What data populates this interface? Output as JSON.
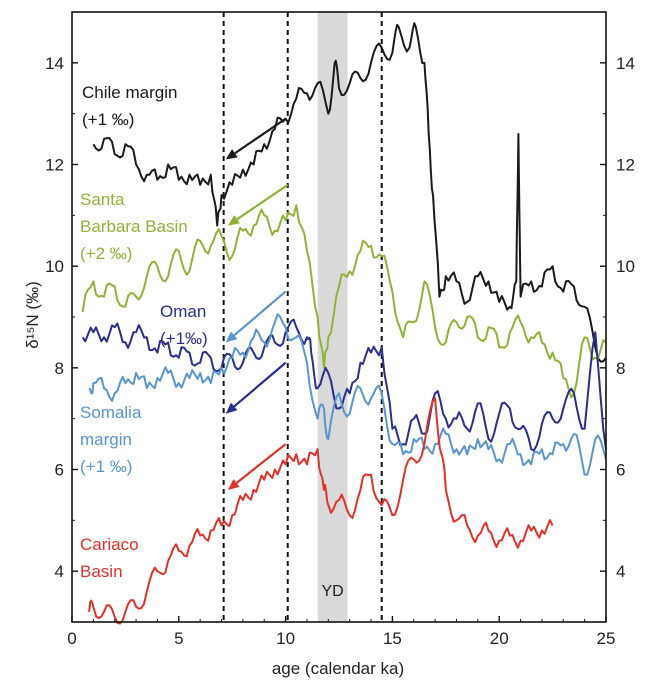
{
  "chart_data": {
    "type": "line",
    "xlabel": "age (calendar ka)",
    "ylabel": "δ¹⁵N (‰)",
    "xlim": [
      0,
      25
    ],
    "ylim": [
      3,
      15
    ],
    "x_ticks": [
      0,
      5,
      10,
      15,
      20,
      25
    ],
    "y_ticks": [
      4,
      6,
      8,
      10,
      12,
      14
    ],
    "grid": false,
    "shaded_band": {
      "label": "YD",
      "x_start": 11.5,
      "x_end": 12.9,
      "color": "#d9d9d9"
    },
    "dashed_lines_x": [
      7.1,
      10.1,
      14.5
    ],
    "series": [
      {
        "name": "Chile margin (+1 ‰)",
        "color": "#1a1a1a",
        "x": [
          1.0,
          1.5,
          2.0,
          2.5,
          3.0,
          3.5,
          4.0,
          4.5,
          5.0,
          5.5,
          6.0,
          6.5,
          6.8,
          7.0,
          7.5,
          8.0,
          8.5,
          9.0,
          9.5,
          10.0,
          10.5,
          11.0,
          11.5,
          12.0,
          12.3,
          12.5,
          13.0,
          13.5,
          14.0,
          14.5,
          15.0,
          15.3,
          15.8,
          16.1,
          16.5,
          16.7,
          16.9,
          17.2,
          17.5,
          18.0,
          18.5,
          19.0,
          19.5,
          20.0,
          20.5,
          20.8,
          20.9,
          21.0,
          21.5,
          22.0,
          22.5,
          23.0,
          23.5,
          24.0,
          24.5,
          25.0
        ],
        "y": [
          12.4,
          12.5,
          12.2,
          12.4,
          12.0,
          11.8,
          11.7,
          12.0,
          11.7,
          11.8,
          11.6,
          11.8,
          10.8,
          11.4,
          11.6,
          11.9,
          12.0,
          12.4,
          12.7,
          12.9,
          13.3,
          13.4,
          13.6,
          13.0,
          14.0,
          13.5,
          13.6,
          13.7,
          14.0,
          14.3,
          14.2,
          14.7,
          14.3,
          14.7,
          14.0,
          12.6,
          11.4,
          9.4,
          9.8,
          9.7,
          9.3,
          9.8,
          9.7,
          9.3,
          9.2,
          9.7,
          12.6,
          9.4,
          9.7,
          9.6,
          10.0,
          9.5,
          9.6,
          9.2,
          8.4,
          8.2
        ]
      },
      {
        "name": "Santa Barbara Basin (+2 ‰)",
        "color": "#8fb339",
        "x": [
          0.5,
          1.0,
          1.5,
          2.0,
          2.5,
          3.0,
          3.5,
          4.0,
          4.5,
          5.0,
          5.5,
          6.0,
          6.5,
          7.0,
          7.5,
          8.0,
          8.5,
          9.0,
          9.5,
          10.0,
          10.5,
          11.0,
          11.5,
          11.8,
          12.0,
          12.5,
          13.0,
          13.5,
          14.0,
          14.5,
          15.0,
          15.5,
          16.0,
          16.5,
          17.0,
          17.5,
          18.0,
          18.5,
          19.0,
          19.5,
          20.0,
          20.5,
          21.0,
          21.5,
          22.0,
          22.5,
          23.0,
          23.5,
          24.0,
          24.5,
          25.0
        ],
        "y": [
          9.1,
          9.7,
          9.4,
          9.6,
          9.2,
          9.4,
          9.8,
          10.0,
          9.8,
          10.3,
          9.9,
          10.5,
          10.4,
          10.6,
          10.2,
          10.7,
          10.8,
          11.0,
          10.7,
          10.9,
          11.2,
          10.3,
          9.0,
          8.0,
          8.6,
          9.6,
          9.9,
          10.3,
          10.4,
          10.2,
          9.5,
          8.6,
          8.9,
          9.7,
          8.8,
          8.5,
          8.9,
          9.0,
          8.6,
          8.8,
          8.4,
          8.7,
          8.9,
          8.6,
          8.5,
          8.3,
          7.8,
          7.5,
          8.6,
          8.2,
          8.5
        ]
      },
      {
        "name": "Oman (+1‰)",
        "color": "#2a2e8c",
        "x": [
          0.5,
          1.0,
          1.5,
          2.0,
          2.5,
          3.0,
          3.5,
          4.0,
          4.5,
          5.0,
          5.5,
          6.0,
          6.5,
          7.0,
          7.5,
          8.0,
          8.5,
          9.0,
          9.5,
          10.0,
          10.5,
          11.0,
          11.2,
          11.5,
          12.0,
          12.5,
          13.0,
          13.5,
          14.0,
          14.5,
          15.0,
          15.5,
          16.0,
          16.5,
          17.0,
          17.5,
          18.0,
          18.5,
          19.0,
          19.5,
          20.0,
          20.5,
          21.0,
          21.5,
          22.0,
          22.5,
          23.0,
          23.5,
          24.0,
          24.5,
          25.0
        ],
        "y": [
          8.6,
          8.7,
          8.6,
          8.8,
          8.5,
          8.7,
          8.6,
          8.3,
          8.5,
          8.2,
          8.3,
          8.1,
          8.2,
          8.0,
          8.2,
          8.1,
          8.3,
          8.4,
          8.5,
          8.7,
          8.8,
          8.6,
          8.3,
          7.6,
          7.9,
          7.2,
          7.5,
          8.1,
          8.3,
          8.4,
          6.8,
          6.5,
          7.0,
          6.7,
          7.5,
          7.0,
          7.0,
          6.8,
          7.3,
          6.6,
          7.1,
          7.2,
          6.8,
          6.4,
          6.9,
          7.0,
          7.2,
          7.5,
          6.8,
          8.7,
          6.4
        ]
      },
      {
        "name": "Somalia margin (+1 ‰)",
        "color": "#5b95cf",
        "x": [
          0.8,
          1.0,
          1.5,
          2.0,
          2.5,
          3.0,
          3.5,
          4.0,
          4.5,
          5.0,
          5.5,
          6.0,
          6.5,
          7.0,
          7.5,
          8.0,
          8.5,
          9.0,
          9.5,
          10.0,
          10.5,
          11.0,
          11.5,
          11.8,
          12.0,
          12.5,
          13.0,
          13.5,
          14.0,
          14.5,
          15.0,
          15.5,
          16.0,
          16.5,
          17.0,
          17.5,
          18.0,
          18.5,
          19.0,
          19.5,
          20.0,
          20.5,
          21.0,
          21.5,
          22.0,
          22.5,
          23.0,
          23.5,
          24.0,
          24.5,
          25.0
        ],
        "y": [
          7.6,
          7.7,
          7.6,
          7.5,
          7.7,
          7.9,
          7.6,
          7.8,
          7.9,
          7.7,
          7.8,
          7.9,
          7.7,
          8.0,
          8.2,
          8.3,
          8.6,
          8.5,
          8.9,
          8.8,
          8.6,
          8.1,
          7.0,
          7.2,
          6.6,
          7.5,
          7.1,
          7.6,
          7.4,
          7.5,
          6.5,
          6.3,
          6.6,
          6.4,
          6.5,
          6.7,
          6.4,
          6.3,
          6.6,
          6.4,
          6.2,
          6.5,
          6.3,
          6.1,
          6.4,
          6.3,
          6.5,
          6.7,
          5.9,
          6.6,
          6.2
        ]
      },
      {
        "name": "Cariaco Basin",
        "color": "#e0322a",
        "x": [
          0.8,
          1.0,
          1.5,
          2.0,
          2.5,
          3.0,
          3.5,
          4.0,
          4.5,
          5.0,
          5.5,
          6.0,
          6.5,
          7.0,
          7.5,
          8.0,
          8.5,
          9.0,
          9.5,
          10.0,
          10.5,
          11.0,
          11.5,
          11.8,
          12.0,
          12.5,
          13.0,
          13.5,
          14.0,
          14.5,
          15.0,
          15.5,
          16.0,
          16.5,
          17.0,
          17.3,
          17.5,
          18.0,
          18.5,
          19.0,
          19.5,
          20.0,
          20.5,
          21.0,
          21.5,
          22.0,
          22.5
        ],
        "y": [
          3.2,
          3.3,
          3.2,
          3.1,
          3.2,
          3.3,
          3.6,
          4.0,
          4.2,
          4.4,
          4.5,
          4.7,
          4.8,
          4.9,
          5.1,
          5.4,
          5.6,
          5.8,
          6.0,
          6.1,
          6.3,
          6.1,
          6.4,
          5.6,
          5.3,
          5.4,
          5.1,
          5.6,
          5.9,
          5.3,
          5.1,
          5.8,
          6.2,
          6.5,
          7.4,
          6.3,
          5.6,
          5.0,
          4.9,
          4.7,
          4.8,
          4.6,
          4.7,
          4.6,
          4.8,
          4.8,
          4.9
        ]
      }
    ],
    "labels": [
      {
        "text_lines": [
          "Chile margin",
          "(+1 ‰)"
        ],
        "color": "#1a1a1a"
      },
      {
        "text_lines": [
          "Santa",
          "Barbara Basin",
          "(+2 ‰)"
        ],
        "color": "#8fb339"
      },
      {
        "text_lines": [
          "Oman",
          "(+1‰)"
        ],
        "color": "#2a2e8c"
      },
      {
        "text_lines": [
          "Somalia",
          "margin",
          "(+1 ‰)"
        ],
        "color": "#5b95cf"
      },
      {
        "text_lines": [
          "Cariaco",
          "Basin"
        ],
        "color": "#e0322a"
      }
    ],
    "annotations": [
      "YD"
    ]
  }
}
